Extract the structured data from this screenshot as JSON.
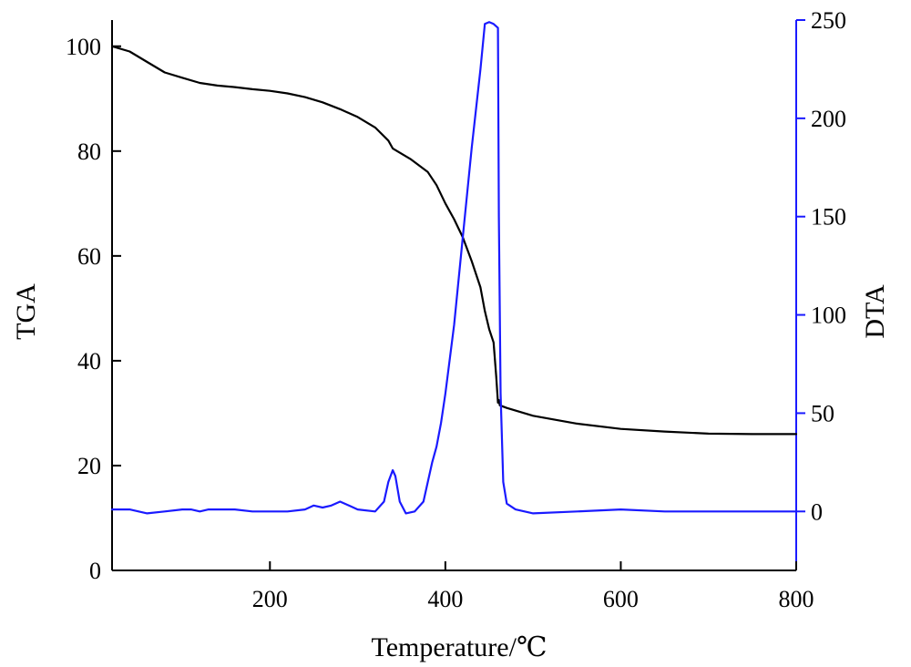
{
  "chart_data": {
    "type": "line",
    "title": "",
    "xlabel": "Temperature/℃",
    "ylabel_left": "TGA",
    "ylabel_right": "DTA",
    "xlim": [
      20,
      800
    ],
    "ylim_left": [
      0,
      105
    ],
    "ylim_right": [
      -30,
      250
    ],
    "x_ticks": [
      200,
      400,
      600,
      800
    ],
    "y_ticks_left": [
      0,
      20,
      40,
      60,
      80,
      100
    ],
    "y_ticks_right": [
      0,
      50,
      100,
      150,
      200,
      250
    ],
    "grid": false,
    "legend": "none",
    "series": [
      {
        "axis": "left",
        "color": "#000000",
        "x": [
          20,
          40,
          60,
          80,
          100,
          120,
          140,
          160,
          180,
          200,
          220,
          240,
          260,
          280,
          300,
          320,
          335,
          340,
          345,
          360,
          380,
          390,
          400,
          410,
          420,
          430,
          440,
          445,
          450,
          455,
          458,
          460,
          461,
          462,
          470,
          500,
          550,
          600,
          650,
          700,
          750,
          800
        ],
        "y": [
          100,
          99,
          97,
          95,
          94,
          93,
          92.5,
          92.2,
          91.8,
          91.5,
          91,
          90.3,
          89.3,
          88,
          86.5,
          84.5,
          82,
          80.5,
          80,
          78.5,
          76,
          73.5,
          70,
          67,
          63.5,
          59,
          54,
          49.5,
          46,
          43.5,
          37,
          32,
          32.5,
          31.5,
          31,
          29.5,
          28,
          27,
          26.5,
          26.1,
          26,
          26
        ]
      },
      {
        "axis": "right",
        "color": "#1a1aff",
        "x": [
          20,
          40,
          60,
          80,
          100,
          110,
          120,
          130,
          140,
          160,
          180,
          200,
          220,
          240,
          250,
          260,
          270,
          280,
          290,
          300,
          320,
          330,
          335,
          340,
          343,
          348,
          355,
          365,
          375,
          385,
          390,
          395,
          400,
          410,
          420,
          430,
          440,
          445,
          450,
          455,
          460,
          461,
          463,
          466,
          470,
          480,
          500,
          550,
          600,
          650,
          700,
          750,
          800
        ],
        "y": [
          1,
          1,
          -1,
          0,
          1,
          1,
          0,
          1,
          1,
          1,
          0,
          0,
          0,
          1,
          3,
          2,
          3,
          5,
          3,
          1,
          0,
          5,
          15,
          21,
          18,
          5,
          -1,
          0,
          5,
          25,
          33,
          45,
          60,
          95,
          140,
          185,
          225,
          248,
          249,
          248,
          246,
          150,
          60,
          15,
          4,
          1,
          -1,
          0,
          1,
          0,
          0,
          0,
          0
        ]
      }
    ]
  }
}
